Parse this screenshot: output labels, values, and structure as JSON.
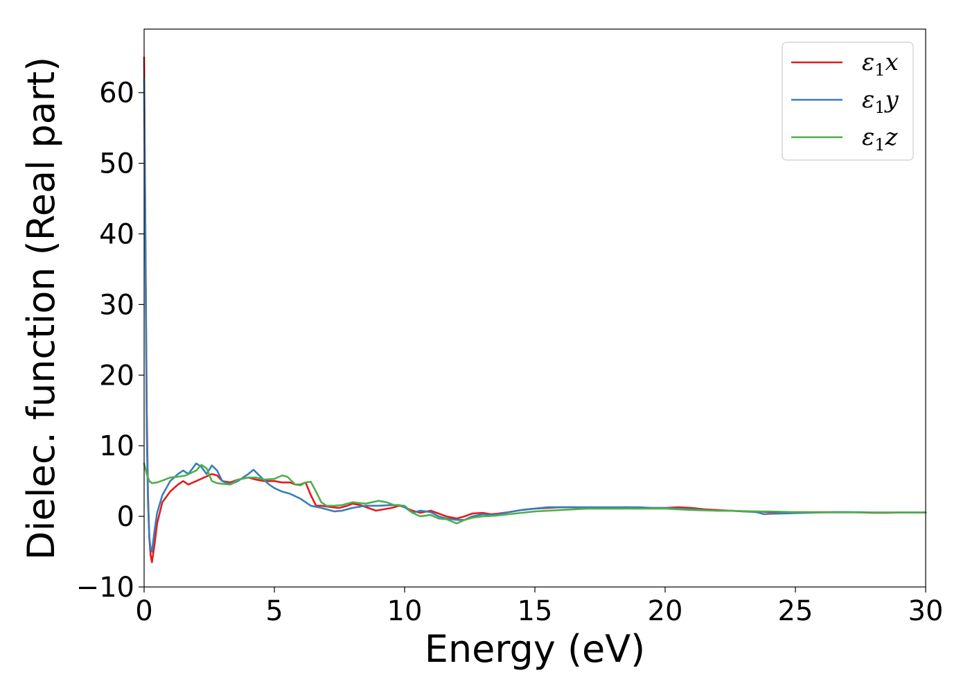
{
  "chart_data": {
    "type": "line",
    "xlabel": "Energy (eV)",
    "ylabel": "Dielec. function (Real part)",
    "xlim": [
      0,
      30
    ],
    "ylim": [
      -10,
      69
    ],
    "xticks": [
      0,
      5,
      10,
      15,
      20,
      25,
      30
    ],
    "xtick_labels": [
      "0",
      "5",
      "10",
      "15",
      "20",
      "25",
      "30"
    ],
    "yticks": [
      -10,
      0,
      10,
      20,
      30,
      40,
      50,
      60
    ],
    "ytick_labels": [
      "−10",
      "0",
      "10",
      "20",
      "30",
      "40",
      "50",
      "60"
    ],
    "grid": false,
    "legend_position": "top-right",
    "series": [
      {
        "name": "ε1x",
        "legend_symbol": "ε",
        "legend_subscript": "1",
        "legend_suffix": "x",
        "color": "#e41a1c",
        "x": [
          0,
          0.05,
          0.1,
          0.15,
          0.2,
          0.25,
          0.3,
          0.4,
          0.5,
          0.7,
          1.0,
          1.3,
          1.5,
          1.7,
          2.0,
          2.3,
          2.6,
          2.8,
          3.0,
          3.3,
          3.6,
          4.0,
          4.3,
          4.6,
          5.0,
          5.3,
          5.6,
          5.8,
          6.0,
          6.2,
          6.4,
          6.6,
          6.8,
          7.0,
          7.2,
          7.5,
          7.8,
          8.0,
          8.3,
          8.6,
          8.9,
          9.2,
          9.5,
          9.8,
          10.0,
          10.3,
          10.6,
          11.0,
          11.3,
          11.6,
          12.0,
          12.3,
          12.6,
          13.0,
          13.3,
          13.6,
          14.0,
          14.5,
          15.0,
          15.5,
          16.0,
          16.5,
          17.0,
          17.5,
          18.0,
          18.5,
          19.0,
          19.5,
          20.0,
          20.5,
          21.0,
          21.5,
          22.0,
          22.5,
          23.0,
          23.5,
          24.0,
          24.5,
          25.0,
          25.5,
          26.0,
          26.5,
          27.0,
          27.5,
          28.0,
          28.5,
          29.0,
          29.5,
          30.0
        ],
        "y": [
          65,
          40,
          15,
          3,
          -3,
          -5.5,
          -6.5,
          -4,
          -1,
          2,
          3.5,
          4.5,
          5,
          4.5,
          5,
          5.5,
          6,
          5.8,
          5,
          4.8,
          5.2,
          5.5,
          5.2,
          5,
          5,
          4.8,
          4.8,
          4.5,
          4.5,
          4.8,
          3,
          1.5,
          1.5,
          1.4,
          1.3,
          1.2,
          1.5,
          1.8,
          1.6,
          1.2,
          0.8,
          1.0,
          1.2,
          1.5,
          1.3,
          0.8,
          0.5,
          0.8,
          0.4,
          0,
          -0.3,
          0,
          0.4,
          0.5,
          0.3,
          0.4,
          0.6,
          0.9,
          1.1,
          1.2,
          1.3,
          1.3,
          1.2,
          1.2,
          1.2,
          1.3,
          1.2,
          1.2,
          1.2,
          1.3,
          1.2,
          1.0,
          0.9,
          0.8,
          0.7,
          0.7,
          0.6,
          0.6,
          0.6,
          0.6,
          0.6,
          0.6,
          0.6,
          0.55,
          0.5,
          0.5,
          0.55,
          0.55,
          0.55
        ]
      },
      {
        "name": "ε1y",
        "legend_symbol": "ε",
        "legend_subscript": "1",
        "legend_suffix": "y",
        "color": "#377eb8",
        "x": [
          0,
          0.05,
          0.1,
          0.15,
          0.2,
          0.25,
          0.3,
          0.4,
          0.5,
          0.7,
          1.0,
          1.3,
          1.5,
          1.7,
          2.0,
          2.2,
          2.4,
          2.6,
          2.8,
          3.0,
          3.3,
          3.6,
          4.0,
          4.2,
          4.5,
          4.8,
          5.0,
          5.3,
          5.6,
          6.0,
          6.4,
          6.8,
          7.0,
          7.3,
          7.6,
          8.0,
          8.5,
          9.0,
          9.5,
          9.8,
          10.0,
          10.3,
          10.6,
          11.0,
          11.3,
          11.6,
          12.0,
          12.3,
          12.6,
          13.0,
          13.3,
          13.6,
          14.0,
          14.5,
          15.0,
          15.5,
          16.0,
          16.5,
          17.0,
          17.5,
          18.0,
          18.5,
          19.0,
          19.5,
          20.0,
          20.5,
          21.0,
          21.5,
          22.0,
          22.5,
          23.0,
          23.5,
          23.8,
          24.0,
          24.5,
          25.0,
          25.5,
          26.0,
          26.5,
          27.0,
          27.5,
          28.0,
          28.5,
          29.0,
          29.5,
          30.0
        ],
        "y": [
          62,
          38,
          12,
          2,
          -3,
          -4.5,
          -5,
          -2,
          0.5,
          3,
          5,
          6,
          6.5,
          6,
          7.5,
          7,
          6,
          7.2,
          6.5,
          5,
          4.5,
          5,
          6,
          6.6,
          5.5,
          4.5,
          4,
          3.5,
          3.2,
          2.5,
          1.5,
          1.2,
          1.0,
          0.7,
          0.8,
          1.2,
          1.5,
          1.5,
          1.6,
          1.6,
          1.3,
          0.5,
          0.8,
          0.6,
          0,
          -0.3,
          -0.5,
          -0.5,
          0,
          0.3,
          0.2,
          0.3,
          0.6,
          0.9,
          1.1,
          1.3,
          1.3,
          1.3,
          1.3,
          1.3,
          1.3,
          1.3,
          1.3,
          1.2,
          1.2,
          1.1,
          1.0,
          0.9,
          0.8,
          0.8,
          0.7,
          0.6,
          0.3,
          0.35,
          0.4,
          0.45,
          0.5,
          0.55,
          0.6,
          0.6,
          0.6,
          0.55,
          0.55,
          0.55,
          0.55,
          0.55
        ]
      },
      {
        "name": "ε1z",
        "legend_symbol": "ε",
        "legend_subscript": "1",
        "legend_suffix": "z",
        "color": "#4daf4a",
        "x": [
          0,
          0.1,
          0.2,
          0.3,
          0.5,
          0.8,
          1.0,
          1.3,
          1.6,
          2.0,
          2.2,
          2.4,
          2.6,
          2.8,
          3.0,
          3.3,
          3.6,
          4.0,
          4.3,
          4.6,
          5.0,
          5.3,
          5.5,
          5.8,
          6.0,
          6.2,
          6.4,
          6.6,
          6.8,
          7.0,
          7.3,
          7.6,
          8.0,
          8.5,
          9.0,
          9.3,
          9.6,
          10.0,
          10.3,
          10.6,
          11.0,
          11.3,
          11.6,
          12.0,
          12.3,
          12.6,
          13.0,
          13.5,
          14.0,
          14.5,
          15.0,
          15.5,
          16.0,
          16.5,
          17.0,
          17.5,
          18.0,
          18.5,
          19.0,
          19.5,
          20.0,
          20.5,
          21.0,
          21.5,
          22.0,
          22.5,
          23.0,
          23.5,
          24.0,
          24.5,
          25.0,
          25.5,
          26.0,
          26.5,
          27.0,
          27.5,
          28.0,
          28.5,
          29.0,
          29.5,
          30.0
        ],
        "y": [
          7.5,
          6,
          5,
          4.7,
          4.8,
          5.2,
          5.5,
          5.6,
          5.8,
          6.5,
          7.3,
          6.8,
          5.0,
          4.7,
          4.6,
          4.5,
          5.2,
          5.5,
          5.5,
          5.2,
          5.3,
          5.8,
          5.6,
          4.5,
          4.4,
          4.8,
          4.9,
          3.5,
          2.0,
          1.5,
          1.5,
          1.6,
          2.0,
          1.8,
          2.2,
          2.0,
          1.6,
          1.5,
          0.5,
          0.0,
          0.2,
          -0.3,
          -0.4,
          -1.0,
          -0.5,
          -0.2,
          0.0,
          0.1,
          0.3,
          0.5,
          0.7,
          0.8,
          0.9,
          1.0,
          1.1,
          1.1,
          1.1,
          1.1,
          1.1,
          1.1,
          1.1,
          1.0,
          0.9,
          0.85,
          0.8,
          0.8,
          0.75,
          0.7,
          0.7,
          0.65,
          0.6,
          0.6,
          0.55,
          0.55,
          0.55,
          0.55,
          0.55,
          0.55,
          0.55,
          0.55,
          0.55
        ]
      }
    ]
  }
}
